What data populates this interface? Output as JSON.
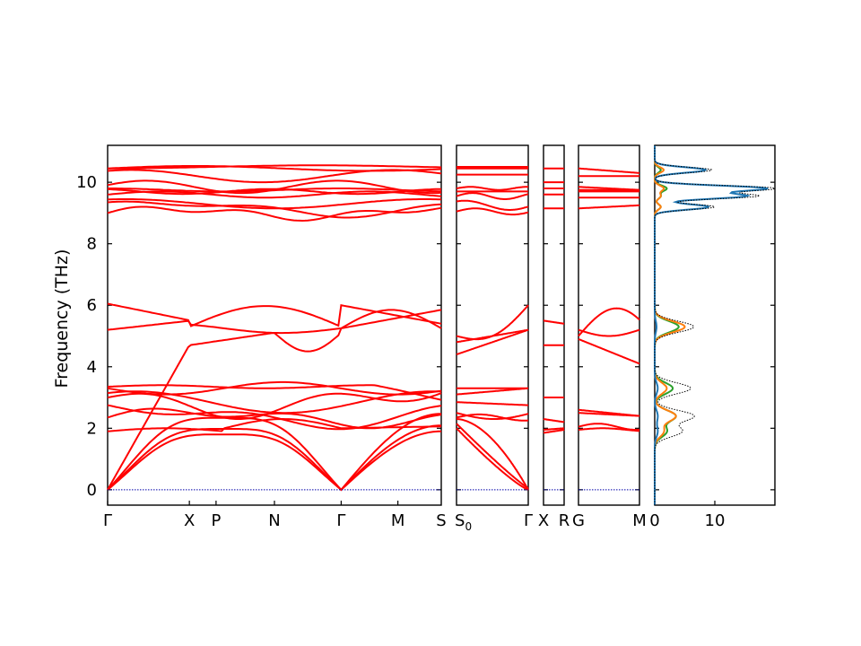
{
  "chart_data": {
    "type": "line",
    "ylabel": "Frequency (THz)",
    "ylim": [
      -0.5,
      11.2
    ],
    "yticks": [
      0,
      2,
      4,
      6,
      8,
      10
    ],
    "zero_line": {
      "y": 0,
      "color": "#0000aa",
      "style": "dotted"
    },
    "band_color": "#ff0000",
    "segments": [
      {
        "x_range": [
          0,
          1
        ],
        "label_left": "Γ",
        "label_right": "S"
      },
      {
        "x_range": [
          0,
          1
        ],
        "label_left": "S0",
        "label_right": "Γ"
      },
      {
        "x_range": [
          0,
          1
        ],
        "label_left": "X",
        "label_right": "R"
      },
      {
        "x_range": [
          0,
          1
        ],
        "label_left": "G",
        "label_right": "M"
      }
    ],
    "panel1_points": [
      {
        "label": "Γ",
        "x": 0.0
      },
      {
        "label": "X",
        "x": 0.245
      },
      {
        "label": "P",
        "x": 0.325
      },
      {
        "label": "N",
        "x": 0.5
      },
      {
        "label": "Γ",
        "x": 0.7
      },
      {
        "label": "M",
        "x": 0.87
      }
    ],
    "panel2_labels": {
      "left": "S",
      "left_sub": "0",
      "right": "Γ"
    },
    "panel3_labels": {
      "left": "X",
      "right": "R"
    },
    "panel4_labels": {
      "left": "G",
      "right": "M"
    },
    "dos": {
      "xlim": [
        0,
        20
      ],
      "xticks": [
        0,
        10
      ],
      "series_colors": [
        "#1f77b4",
        "#ff7f0e",
        "#2ca02c"
      ],
      "total_style": "dotted",
      "peaks": [
        {
          "freq": 10.4,
          "total": 9.5,
          "s1": 8.5,
          "s2": 1.5,
          "s3": 1.0
        },
        {
          "freq": 9.8,
          "total": 20.0,
          "s1": 18.5,
          "s2": 1.5,
          "s3": 2.0
        },
        {
          "freq": 9.55,
          "total": 17.0,
          "s1": 15.0,
          "s2": 1.0,
          "s3": 1.0
        },
        {
          "freq": 9.2,
          "total": 10.0,
          "s1": 9.0,
          "s2": 1.0,
          "s3": 1.0
        },
        {
          "freq": 5.3,
          "total": 6.5,
          "s1": 0.3,
          "s2": 5.0,
          "s3": 4.0
        },
        {
          "freq": 3.3,
          "total": 6.0,
          "s1": 0.5,
          "s2": 2.0,
          "s3": 3.0
        },
        {
          "freq": 2.4,
          "total": 6.5,
          "s1": 0.5,
          "s2": 3.5,
          "s3": 3.5
        },
        {
          "freq": 1.9,
          "total": 4.5,
          "s1": 0.5,
          "s2": 1.5,
          "s3": 2.0
        }
      ]
    },
    "bands": {
      "acoustic_gamma": [
        0.0,
        0.7
      ],
      "optical_low": [
        2.35,
        2.45,
        2.8,
        3.0,
        3.3,
        3.35
      ],
      "optical_mid": [
        5.2,
        5.25,
        6.05
      ],
      "optical_high": [
        9.0,
        9.15,
        9.3,
        9.6,
        9.7,
        9.75,
        9.85,
        10.2,
        10.45,
        10.5
      ]
    }
  }
}
